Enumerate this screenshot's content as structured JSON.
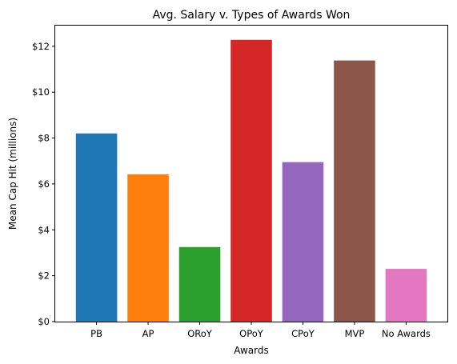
{
  "chart_data": {
    "type": "bar",
    "title": "Avg. Salary v. Types of Awards Won",
    "xlabel": "Awards",
    "ylabel": "Mean Cap Hit (millions)",
    "categories": [
      "PB",
      "AP",
      "ORoY",
      "OPoY",
      "CPoY",
      "MVP",
      "No Awards"
    ],
    "values": [
      8.2,
      6.42,
      3.25,
      12.28,
      6.95,
      11.38,
      2.3
    ],
    "colors": [
      "#1f77b4",
      "#ff7f0e",
      "#2ca02c",
      "#d62728",
      "#9467bd",
      "#8c564b",
      "#e377c2"
    ],
    "ylim": [
      0,
      12.9
    ],
    "yticks": [
      0,
      2,
      4,
      6,
      8,
      10,
      12
    ],
    "ytick_labels": [
      "$0",
      "$2",
      "$4",
      "$6",
      "$8",
      "$10",
      "$12"
    ],
    "grid": false,
    "legend": "none"
  }
}
